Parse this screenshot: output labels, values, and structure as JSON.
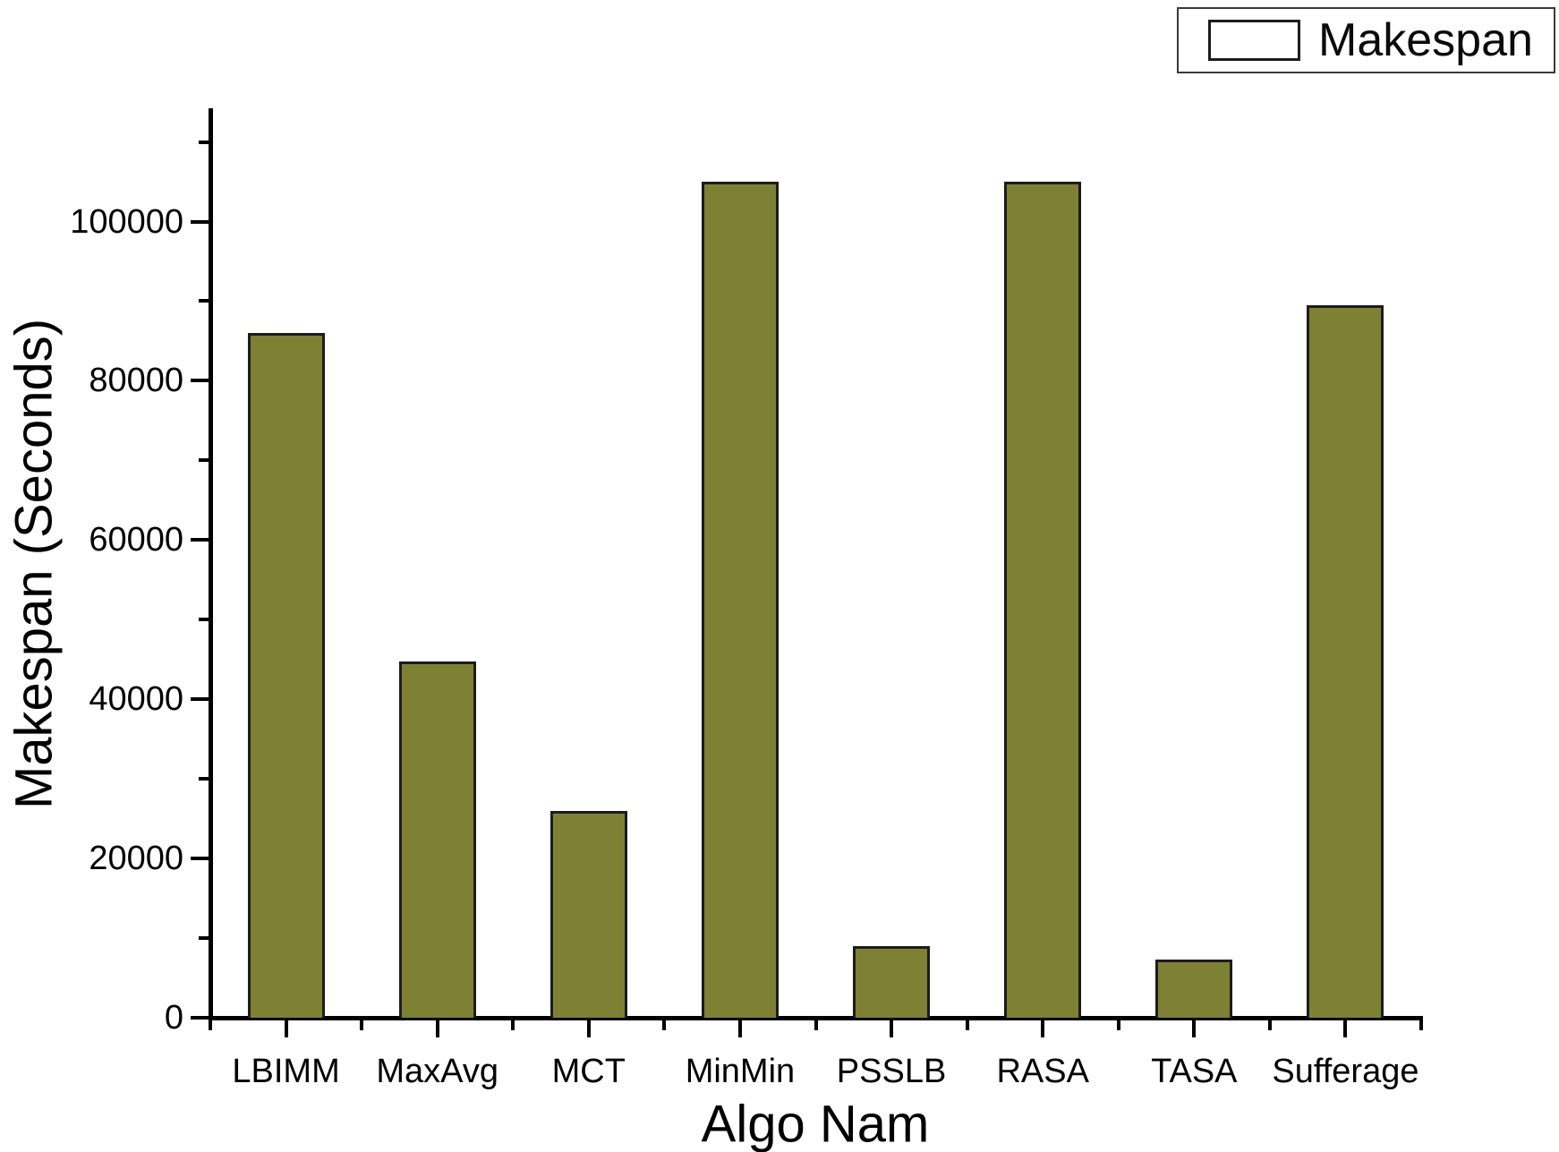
{
  "chart_data": {
    "type": "bar",
    "title": "",
    "categories": [
      "LBIMM",
      "MaxAvg",
      "MCT",
      "MinMin",
      "PSSLB",
      "RASA",
      "TASA",
      "Sufferage"
    ],
    "series": [
      {
        "name": "Makespan",
        "values": [
          86000,
          44700,
          26000,
          105000,
          9000,
          105000,
          7300,
          89500
        ]
      }
    ],
    "xlabel": "Algo Nam",
    "ylabel": "Makespan (Seconds)",
    "ylim": [
      0,
      114000
    ],
    "y_major_ticks": [
      0,
      20000,
      40000,
      60000,
      80000,
      100000
    ],
    "y_minor_step": 10000,
    "grid": false,
    "legend_position": "top-right",
    "bar_color": "#7e8134",
    "bar_border_color": "#1c1c1c",
    "axis_color": "#000000",
    "text_color": "#000000"
  },
  "legend": {
    "label": "Makespan",
    "swatch_color": "#7e8134"
  }
}
